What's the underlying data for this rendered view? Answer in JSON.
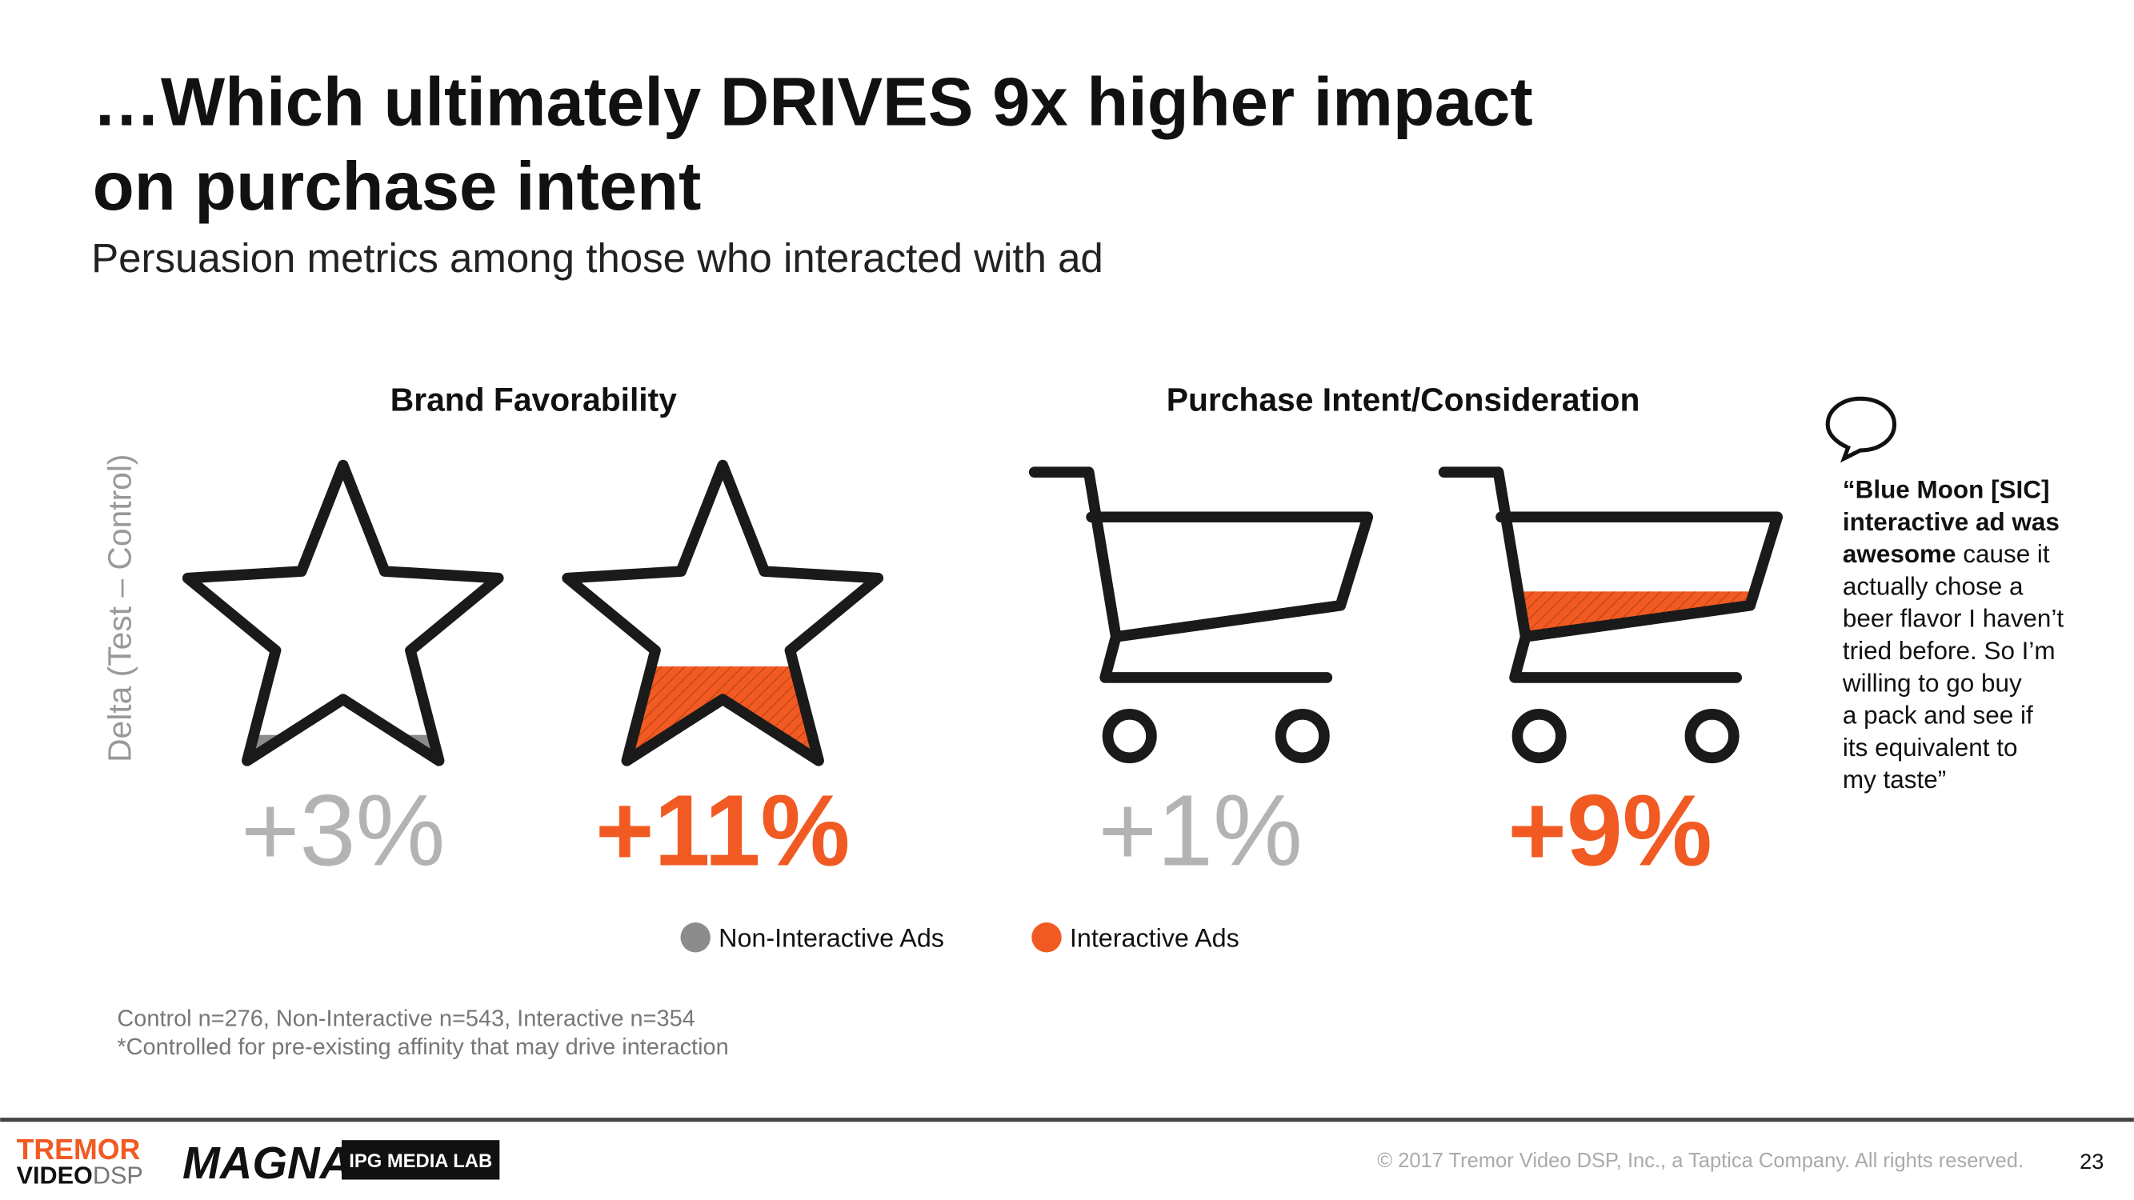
{
  "header": {
    "title_lines": [
      "…Which ultimately DRIVES 9x higher impact",
      "on purchase intent"
    ],
    "subtitle": "Persuasion metrics among those who interacted with ad"
  },
  "y_axis_label": "Delta (Test – Control)",
  "panels": [
    {
      "title": "Brand Favorability",
      "icon": "star",
      "metrics": [
        {
          "value": 3,
          "label": "+3%"
        },
        {
          "value": 11,
          "label": "+11%"
        }
      ]
    },
    {
      "title": "Purchase Intent/Consideration",
      "icon": "cart",
      "metrics": [
        {
          "value": 1,
          "label": "+1%"
        },
        {
          "value": 9,
          "label": "+9%"
        }
      ]
    }
  ],
  "legend": [
    {
      "name": "Non-Interactive Ads",
      "color": "#8c8c8c"
    },
    {
      "name": "Interactive Ads",
      "color": "#f15a22"
    }
  ],
  "quote": {
    "lines": [
      [
        {
          "text": "“Blue Moon [SIC]",
          "bold": true
        }
      ],
      [
        {
          "text": "interactive ad was",
          "bold": true
        }
      ],
      [
        {
          "text": "awesome",
          "bold": true
        },
        {
          "text": " cause it",
          "bold": false
        }
      ],
      [
        {
          "text": "actually chose a",
          "bold": false
        }
      ],
      [
        {
          "text": "beer flavor I haven’t",
          "bold": false
        }
      ],
      [
        {
          "text": "tried before. So I’m",
          "bold": false
        }
      ],
      [
        {
          "text": "willing to go buy",
          "bold": false
        }
      ],
      [
        {
          "text": "a pack and see if",
          "bold": false
        }
      ],
      [
        {
          "text": "its equivalent to",
          "bold": false
        }
      ],
      [
        {
          "text": "my taste”",
          "bold": false
        }
      ]
    ]
  },
  "notes": [
    "Control n=276, Non-Interactive n=543, Interactive n=354",
    "*Controlled for pre-existing affinity that may drive interaction"
  ],
  "footer": {
    "tremor": "TREMOR",
    "video": "VIDEO",
    "dsp": "DSP",
    "magna": "MAGNA",
    "ipg": "IPG MEDIA LAB",
    "copyright": "© 2017 Tremor Video DSP, Inc., a Taptica Company. All rights reserved.",
    "page_number": 23
  }
}
